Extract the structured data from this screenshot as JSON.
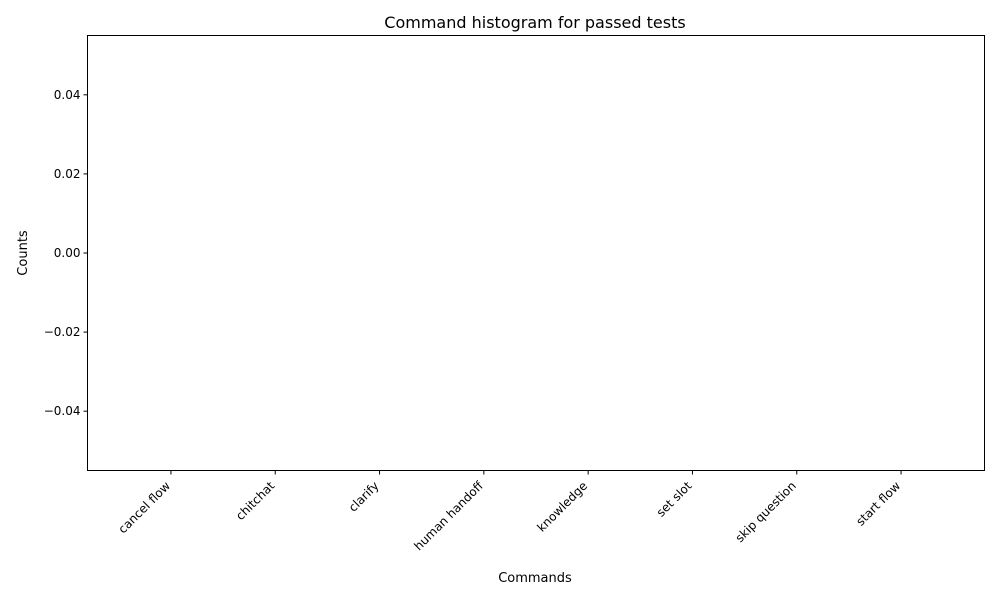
{
  "chart_data": {
    "type": "bar",
    "title": "Command histogram for passed tests",
    "xlabel": "Commands",
    "ylabel": "Counts",
    "categories": [
      "cancel flow",
      "chitchat",
      "clarify",
      "human handoff",
      "knowledge",
      "set slot",
      "skip question",
      "start flow"
    ],
    "values": [
      0,
      0,
      0,
      0,
      0,
      0,
      0,
      0
    ],
    "ylim": [
      -0.055,
      0.055
    ],
    "yticks": [
      -0.04,
      -0.02,
      0.0,
      0.02,
      0.04
    ],
    "ytick_labels": [
      "−0.04",
      "−0.02",
      "0.00",
      "0.02",
      "0.04"
    ],
    "grid": false,
    "bar_color": "#1f77b4"
  }
}
